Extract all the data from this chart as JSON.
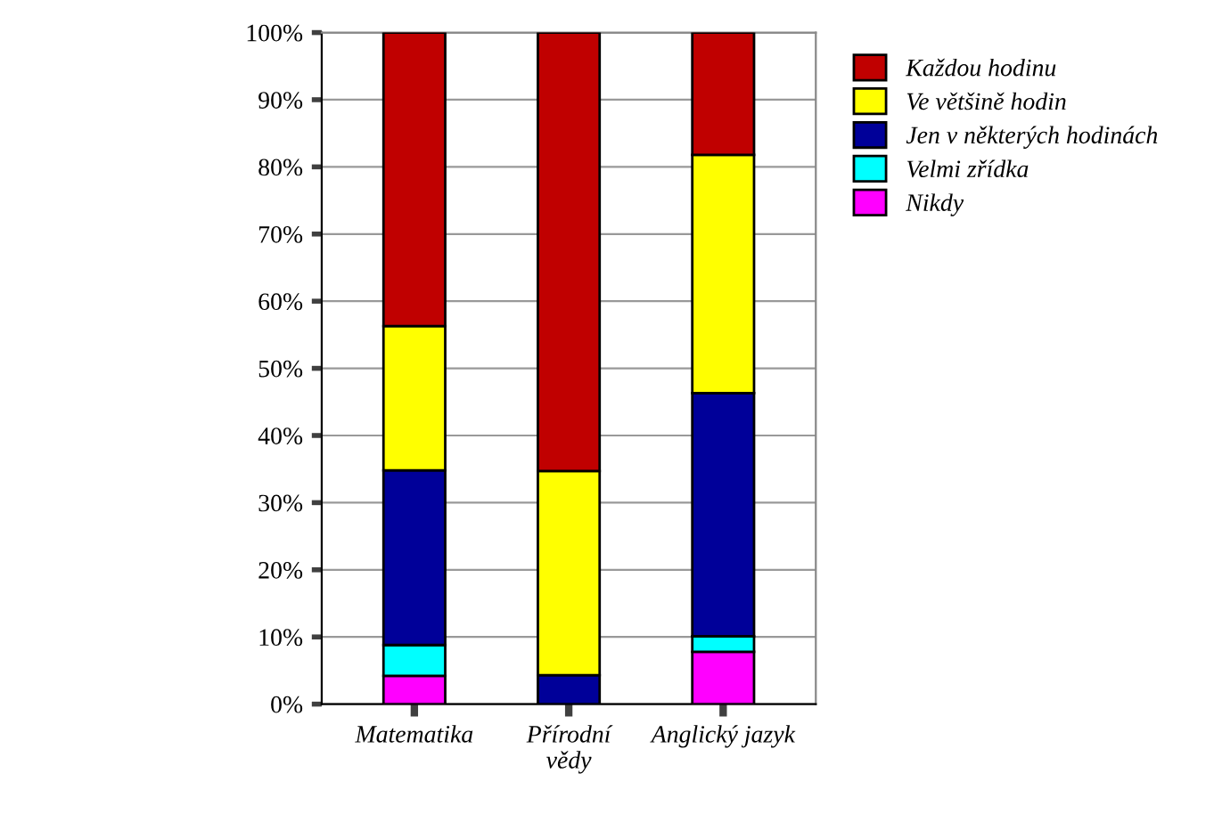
{
  "chart_data": {
    "type": "bar",
    "stacked": true,
    "categories": [
      "Matematika",
      "Přírodní\nvědy",
      "Anglický jazyk"
    ],
    "series": [
      {
        "name": "Nikdy",
        "color": "#ff00ff",
        "values": [
          4.2,
          0,
          7.8
        ]
      },
      {
        "name": "Velmi zřídka",
        "color": "#00ffff",
        "values": [
          4.6,
          0,
          2.3
        ]
      },
      {
        "name": "Jen v některých hodinách",
        "color": "#000099",
        "values": [
          26.0,
          4.3,
          36.2
        ]
      },
      {
        "name": "Ve většině hodin",
        "color": "#ffff00",
        "values": [
          21.5,
          30.4,
          35.5
        ]
      },
      {
        "name": "Každou hodinu",
        "color": "#c00000",
        "values": [
          43.7,
          65.3,
          18.2
        ]
      }
    ],
    "ylim": [
      0,
      100
    ],
    "yticks": [
      {
        "value": 0,
        "label": "0%"
      },
      {
        "value": 10,
        "label": "10%"
      },
      {
        "value": 20,
        "label": "20%"
      },
      {
        "value": 30,
        "label": "30%"
      },
      {
        "value": 40,
        "label": "40%"
      },
      {
        "value": 50,
        "label": "50%"
      },
      {
        "value": 60,
        "label": "60%"
      },
      {
        "value": 70,
        "label": "70%"
      },
      {
        "value": 80,
        "label": "80%"
      },
      {
        "value": 90,
        "label": "90%"
      },
      {
        "value": 100,
        "label": "100%"
      }
    ],
    "grid": "y",
    "legend": "top right"
  }
}
